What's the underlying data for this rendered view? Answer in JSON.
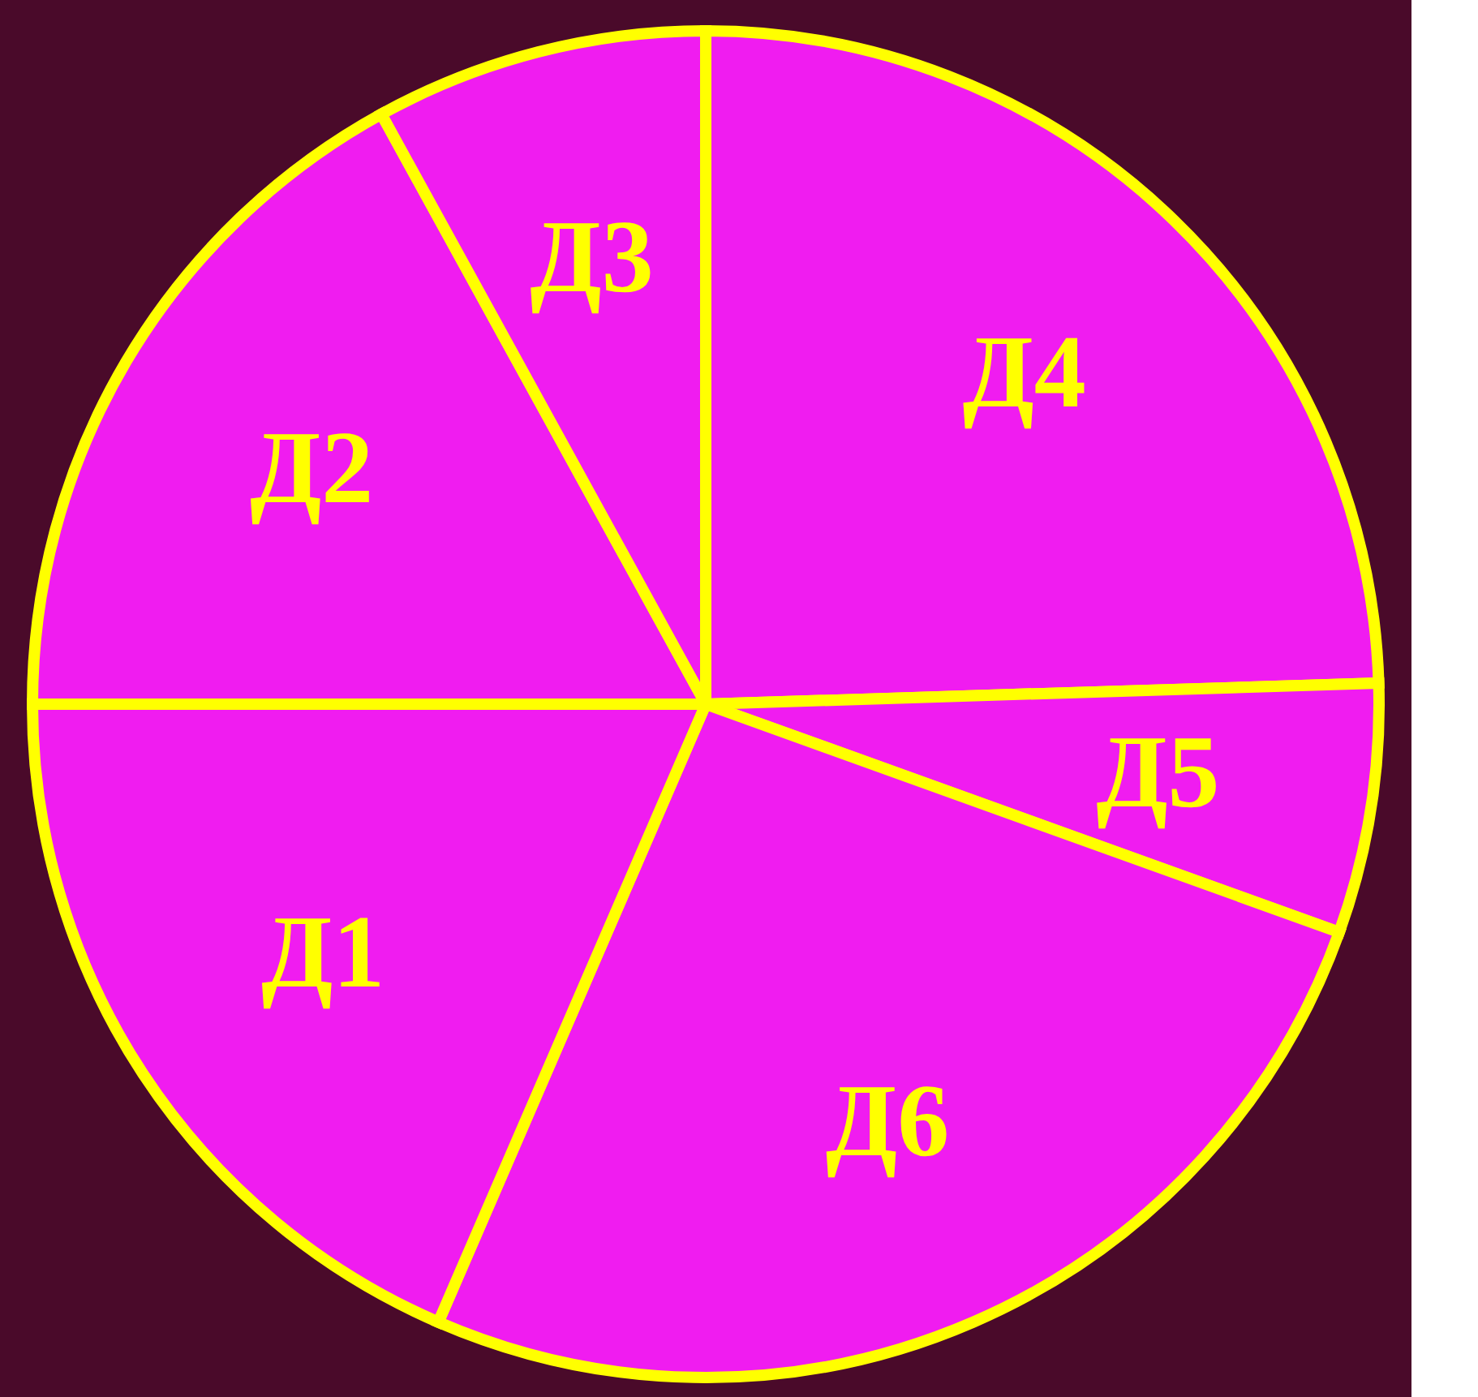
{
  "chart_data": {
    "type": "pie",
    "categories": [
      "Д4",
      "Д5",
      "Д6",
      "Д1",
      "Д2",
      "Д3"
    ],
    "values": [
      24.5,
      6,
      26,
      18.5,
      17,
      8
    ],
    "colors": [
      "#f01cf0",
      "#f01cf0",
      "#f01cf0",
      "#f01cf0",
      "#f01cf0",
      "#f01cf0"
    ],
    "legend": false
  }
}
